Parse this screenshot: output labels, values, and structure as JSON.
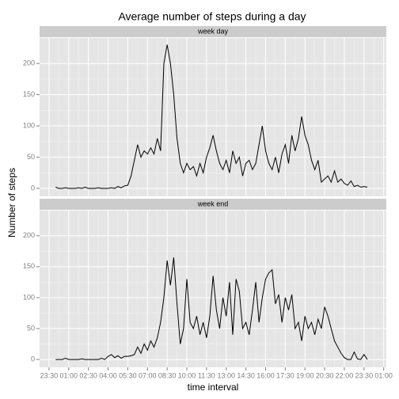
{
  "chart_data": {
    "type": "line",
    "title": "Average number of steps during a day",
    "xlabel": "time interval",
    "ylabel": "Number of steps",
    "x": [
      0,
      0.25,
      0.5,
      0.75,
      1,
      1.25,
      1.5,
      1.75,
      2,
      2.25,
      2.5,
      2.75,
      3,
      3.25,
      3.5,
      3.75,
      4,
      4.25,
      4.5,
      4.75,
      5,
      5.25,
      5.5,
      5.75,
      6,
      6.25,
      6.5,
      6.75,
      7,
      7.25,
      7.5,
      7.75,
      8,
      8.25,
      8.5,
      8.75,
      9,
      9.25,
      9.5,
      9.75,
      10,
      10.25,
      10.5,
      10.75,
      11,
      11.25,
      11.5,
      11.75,
      12,
      12.25,
      12.5,
      12.75,
      13,
      13.25,
      13.5,
      13.75,
      14,
      14.25,
      14.5,
      14.75,
      15,
      15.25,
      15.5,
      15.75,
      16,
      16.25,
      16.5,
      16.75,
      17,
      17.25,
      17.5,
      17.75,
      18,
      18.25,
      18.5,
      18.75,
      19,
      19.25,
      19.5,
      19.75,
      20,
      20.25,
      20.5,
      20.75,
      21,
      21.25,
      21.5,
      21.75,
      22,
      22.25,
      22.5,
      22.75,
      23,
      23.25,
      23.5,
      23.75
    ],
    "series": [
      {
        "name": "week day",
        "color": "#000000",
        "values": [
          2,
          0,
          0,
          1,
          0,
          0,
          0,
          1,
          0,
          2,
          0,
          0,
          0,
          1,
          0,
          0,
          0,
          1,
          0,
          3,
          1,
          4,
          5,
          20,
          45,
          70,
          50,
          60,
          55,
          65,
          55,
          80,
          60,
          200,
          230,
          200,
          150,
          80,
          40,
          25,
          40,
          30,
          35,
          20,
          40,
          25,
          50,
          65,
          85,
          60,
          40,
          30,
          45,
          25,
          60,
          40,
          50,
          20,
          40,
          45,
          30,
          40,
          70,
          100,
          60,
          40,
          30,
          50,
          25,
          55,
          70,
          40,
          85,
          60,
          80,
          115,
          85,
          70,
          45,
          30,
          45,
          10,
          15,
          20,
          10,
          28,
          10,
          15,
          8,
          5,
          12,
          3,
          5,
          2,
          3,
          2
        ]
      },
      {
        "name": "week end",
        "color": "#000000",
        "values": [
          0,
          0,
          0,
          2,
          0,
          0,
          0,
          0,
          1,
          0,
          0,
          0,
          0,
          0,
          2,
          0,
          5,
          8,
          3,
          6,
          2,
          5,
          5,
          6,
          8,
          20,
          10,
          25,
          15,
          30,
          20,
          35,
          60,
          100,
          160,
          120,
          165,
          90,
          25,
          50,
          130,
          60,
          50,
          70,
          40,
          60,
          35,
          70,
          135,
          80,
          50,
          100,
          70,
          125,
          40,
          130,
          110,
          50,
          60,
          40,
          80,
          125,
          60,
          100,
          130,
          140,
          145,
          90,
          105,
          60,
          100,
          80,
          105,
          50,
          60,
          30,
          70,
          50,
          60,
          40,
          65,
          50,
          85,
          70,
          50,
          30,
          20,
          10,
          3,
          0,
          0,
          12,
          1,
          0,
          8,
          0
        ]
      }
    ],
    "xlim": [
      -1.22,
      25.2
    ],
    "xticks": [
      {
        "value": -0.5,
        "label": "23:30"
      },
      {
        "value": 1,
        "label": "01:00"
      },
      {
        "value": 2.5,
        "label": "02:30"
      },
      {
        "value": 4,
        "label": "04:00"
      },
      {
        "value": 5.5,
        "label": "05:30"
      },
      {
        "value": 7,
        "label": "07:00"
      },
      {
        "value": 8.5,
        "label": "08:30"
      },
      {
        "value": 10,
        "label": "10:00"
      },
      {
        "value": 11.5,
        "label": "11:30"
      },
      {
        "value": 13,
        "label": "13:00"
      },
      {
        "value": 14.5,
        "label": "14:30"
      },
      {
        "value": 16,
        "label": "16:00"
      },
      {
        "value": 17.5,
        "label": "17:30"
      },
      {
        "value": 19,
        "label": "19:00"
      },
      {
        "value": 20.5,
        "label": "20:30"
      },
      {
        "value": 22,
        "label": "22:00"
      },
      {
        "value": 23.5,
        "label": "23:30"
      },
      {
        "value": 25,
        "label": "01:00"
      }
    ],
    "ylim": [
      -12.7,
      240.7
    ],
    "yticks": [
      0,
      50,
      100,
      150,
      200
    ],
    "grid": true
  }
}
